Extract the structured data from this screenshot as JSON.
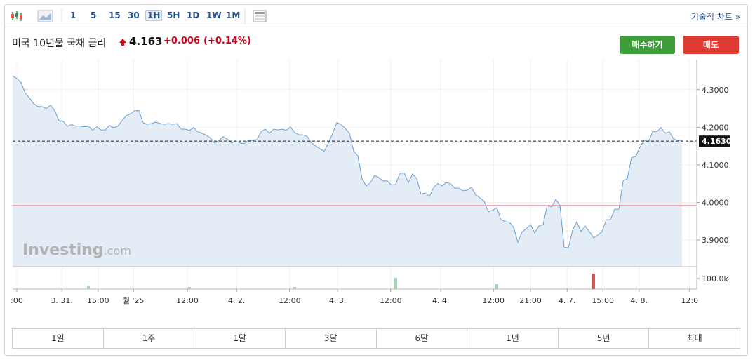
{
  "toolbar": {
    "intervals": [
      "1",
      "5",
      "15",
      "30",
      "1H",
      "5H",
      "1D",
      "1W",
      "1M"
    ],
    "active": "1H",
    "link": "기술적 차트 »"
  },
  "header": {
    "title": "미국 10년물 국채 금리",
    "price": "4.163",
    "change": "+0.006",
    "change_percent": "(+0.14%)",
    "buy": "매수하기",
    "sell": "매도"
  },
  "chart_data": {
    "type": "area",
    "color": "#6a9fd0",
    "fill": "#e4ecf5",
    "grid": true,
    "values": [
      4.337,
      4.33,
      4.319,
      4.291,
      4.278,
      4.263,
      4.255,
      4.255,
      4.25,
      4.259,
      4.244,
      4.218,
      4.216,
      4.203,
      4.207,
      4.203,
      4.203,
      4.201,
      4.203,
      4.192,
      4.201,
      4.193,
      4.193,
      4.205,
      4.199,
      4.203,
      4.218,
      4.231,
      4.236,
      4.244,
      4.244,
      4.212,
      4.208,
      4.21,
      4.214,
      4.21,
      4.208,
      4.21,
      4.208,
      4.21,
      4.195,
      4.195,
      4.192,
      4.199,
      4.188,
      4.184,
      4.179,
      4.171,
      4.158,
      4.165,
      4.175,
      4.169,
      4.158,
      4.164,
      4.158,
      4.156,
      4.165,
      4.165,
      4.167,
      4.188,
      4.195,
      4.184,
      4.195,
      4.193,
      4.195,
      4.192,
      4.201,
      4.186,
      4.18,
      4.18,
      4.175,
      4.158,
      4.15,
      4.143,
      4.136,
      4.158,
      4.184,
      4.212,
      4.208,
      4.197,
      4.184,
      4.137,
      4.124,
      4.063,
      4.044,
      4.053,
      4.072,
      4.066,
      4.057,
      4.057,
      4.046,
      4.048,
      4.078,
      4.078,
      4.053,
      4.076,
      4.063,
      4.022,
      4.025,
      4.016,
      4.04,
      4.05,
      4.044,
      4.053,
      4.05,
      4.038,
      4.038,
      4.031,
      4.033,
      4.04,
      4.02,
      4.012,
      4.003,
      3.975,
      3.979,
      3.986,
      3.954,
      3.949,
      3.947,
      3.934,
      3.894,
      3.921,
      3.93,
      3.941,
      3.919,
      3.937,
      3.941,
      3.993,
      3.988,
      4.008,
      3.993,
      3.881,
      3.879,
      3.926,
      3.949,
      3.922,
      3.937,
      3.922,
      3.906,
      3.913,
      3.922,
      3.954,
      3.954,
      3.982,
      3.982,
      4.057,
      4.063,
      4.119,
      4.122,
      4.147,
      4.165,
      4.16,
      4.188,
      4.188,
      4.199,
      4.184,
      4.188,
      4.169,
      4.165,
      4.165
    ],
    "xlim": [
      0,
      162.5
    ],
    "xticks": [
      {
        "value": 1,
        "label": ":00"
      },
      {
        "value": 11.7,
        "label": "3. 31."
      },
      {
        "value": 20.3,
        "label": "15:00"
      },
      {
        "value": 28.7,
        "label": "월 '25"
      },
      {
        "value": 41.5,
        "label": "12:00"
      },
      {
        "value": 53.2,
        "label": "4. 2."
      },
      {
        "value": 65.8,
        "label": "12:00"
      },
      {
        "value": 77.2,
        "label": "4. 3."
      },
      {
        "value": 89.8,
        "label": "12:00"
      },
      {
        "value": 101.7,
        "label": "4. 4."
      },
      {
        "value": 114.2,
        "label": "12:00"
      },
      {
        "value": 123,
        "label": "21:00"
      },
      {
        "value": 131.7,
        "label": "4. 7."
      },
      {
        "value": 140.2,
        "label": "15:00"
      },
      {
        "value": 148.8,
        "label": "4. 8."
      },
      {
        "value": 160.8,
        "label": "12:0"
      }
    ],
    "ylim": [
      3.829,
      4.38
    ],
    "yticks": [
      {
        "value": 3.9,
        "label": "3.9000"
      },
      {
        "value": 4.0,
        "label": "4.0000"
      },
      {
        "value": 4.1,
        "label": "4.1000"
      },
      {
        "value": 4.2,
        "label": "4.2000"
      },
      {
        "value": 4.3,
        "label": "4.3000"
      }
    ],
    "current": {
      "value": 4.163,
      "label": "4.1630"
    },
    "reference_line": 3.9925,
    "volume": {
      "x": [
        18,
        42,
        67,
        91,
        115,
        138
      ],
      "values": [
        33000,
        20000,
        20000,
        107000,
        47000,
        147000
      ],
      "colors": [
        "#a8d5b5",
        "#a8d5b5",
        "#a8d5b5",
        "#a8d5b5",
        "#a8d5b5",
        "#d9534f"
      ],
      "ylim": [
        0,
        213000
      ],
      "yticks": [
        {
          "value": 100000,
          "label": "100.0k"
        }
      ]
    },
    "watermark": [
      "Investing",
      ".com"
    ]
  },
  "periods": [
    "1일",
    "1주",
    "1달",
    "3달",
    "6달",
    "1년",
    "5년",
    "최대"
  ]
}
